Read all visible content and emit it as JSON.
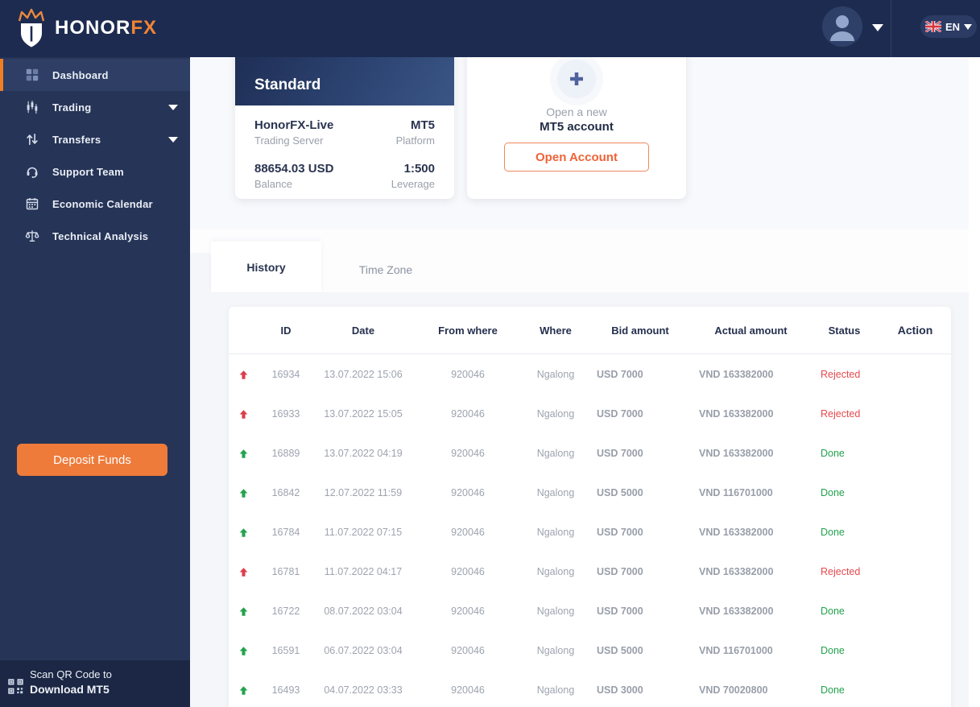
{
  "header": {
    "brand_primary": "HONOR",
    "brand_accent": "FX",
    "language": "EN"
  },
  "sidebar": {
    "items": [
      {
        "label": "Dashboard",
        "icon": "dashboard-grid-icon",
        "state": "active",
        "has_submenu": false
      },
      {
        "label": "Trading",
        "icon": "trading-candles-icon",
        "state": "",
        "has_submenu": true
      },
      {
        "label": "Transfers",
        "icon": "transfers-arrows-icon",
        "state": "",
        "has_submenu": true
      },
      {
        "label": "Support Team",
        "icon": "support-headset-icon",
        "state": "",
        "has_submenu": false
      },
      {
        "label": "Economic Calendar",
        "icon": "calendar-icon",
        "state": "",
        "has_submenu": false
      },
      {
        "label": "Technical Analysis",
        "icon": "scales-icon",
        "state": "",
        "has_submenu": false
      }
    ],
    "deposit_button": "Deposit Funds",
    "qr_line1": "Scan QR Code to",
    "qr_line2": "Download MT5"
  },
  "account_card": {
    "title": "Standard",
    "server_value": "HonorFX-Live",
    "server_label": "Trading Server",
    "platform_value": "MT5",
    "platform_label": "Platform",
    "balance_value": "88654.03 USD",
    "balance_label": "Balance",
    "leverage_value": "1:500",
    "leverage_label": "Leverage"
  },
  "new_account_card": {
    "line1": "Open a new",
    "line2": "MT5 account",
    "button": "Open Account"
  },
  "tabs": [
    {
      "label": "History",
      "state": "active"
    },
    {
      "label": "Time Zone",
      "state": ""
    }
  ],
  "table": {
    "columns": [
      "ID",
      "Date",
      "From where",
      "Where",
      "Bid amount",
      "Actual amount",
      "Status",
      "Action"
    ],
    "rows": [
      {
        "status_type": "rejected",
        "id": "16934",
        "date": "13.07.2022 15:06",
        "from": "920046",
        "where": "Ngalong",
        "bid": "USD 7000",
        "actual": "VND 163382000",
        "status": "Rejected"
      },
      {
        "status_type": "rejected",
        "id": "16933",
        "date": "13.07.2022 15:05",
        "from": "920046",
        "where": "Ngalong",
        "bid": "USD 7000",
        "actual": "VND 163382000",
        "status": "Rejected"
      },
      {
        "status_type": "done",
        "id": "16889",
        "date": "13.07.2022 04:19",
        "from": "920046",
        "where": "Ngalong",
        "bid": "USD 7000",
        "actual": "VND 163382000",
        "status": "Done"
      },
      {
        "status_type": "done",
        "id": "16842",
        "date": "12.07.2022 11:59",
        "from": "920046",
        "where": "Ngalong",
        "bid": "USD 5000",
        "actual": "VND 116701000",
        "status": "Done"
      },
      {
        "status_type": "done",
        "id": "16784",
        "date": "11.07.2022 07:15",
        "from": "920046",
        "where": "Ngalong",
        "bid": "USD 7000",
        "actual": "VND 163382000",
        "status": "Done"
      },
      {
        "status_type": "rejected",
        "id": "16781",
        "date": "11.07.2022 04:17",
        "from": "920046",
        "where": "Ngalong",
        "bid": "USD 7000",
        "actual": "VND 163382000",
        "status": "Rejected"
      },
      {
        "status_type": "done",
        "id": "16722",
        "date": "08.07.2022 03:04",
        "from": "920046",
        "where": "Ngalong",
        "bid": "USD 7000",
        "actual": "VND 163382000",
        "status": "Done"
      },
      {
        "status_type": "done",
        "id": "16591",
        "date": "06.07.2022 03:04",
        "from": "920046",
        "where": "Ngalong",
        "bid": "USD 5000",
        "actual": "VND 116701000",
        "status": "Done"
      },
      {
        "status_type": "done",
        "id": "16493",
        "date": "04.07.2022 03:33",
        "from": "920046",
        "where": "Ngalong",
        "bid": "USD 3000",
        "actual": "VND 70020800",
        "status": "Done"
      }
    ]
  },
  "colors": {
    "accent_orange": "#ee7b3a",
    "status_done": "#23a24d",
    "status_rejected": "#e5494d",
    "navbar_navy": "#1d2b50",
    "sidebar_navy": "#263457"
  }
}
